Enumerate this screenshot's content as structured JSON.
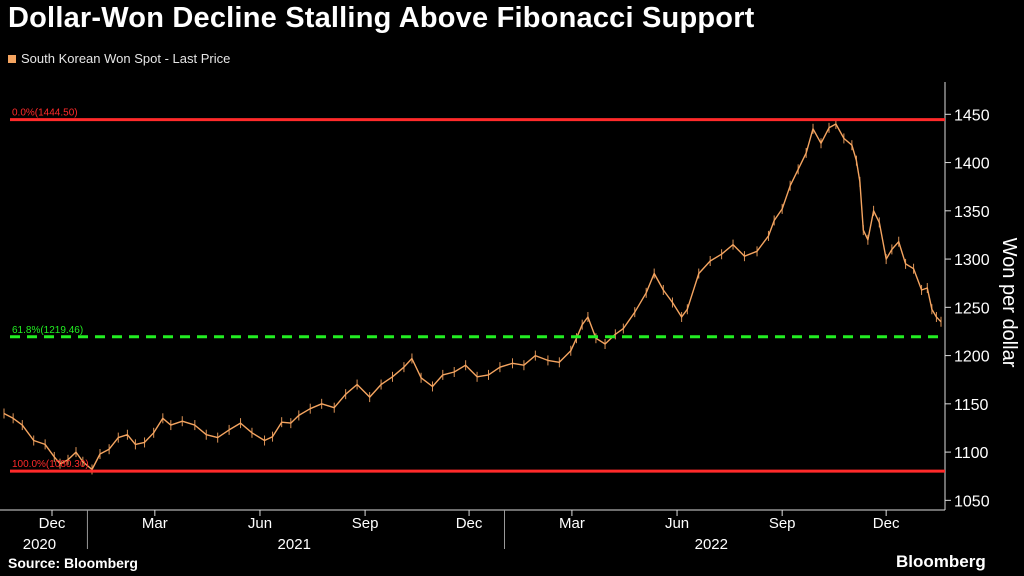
{
  "title": "Dollar-Won Decline Stalling Above Fibonacci Support",
  "legend": {
    "label": "South Korean Won Spot - Last Price",
    "color": "#f4a460"
  },
  "source": "Source: Bloomberg",
  "brand": "Bloomberg",
  "chart_data": {
    "type": "line",
    "ylabel": "Won per dollar",
    "y_axis_side": "right",
    "ylim": [
      1040,
      1470
    ],
    "yticks": [
      1050,
      1100,
      1150,
      1200,
      1250,
      1300,
      1350,
      1400,
      1450
    ],
    "xlim": [
      "2020-10-20",
      "2023-01-18"
    ],
    "month_ticks": [
      {
        "label": "Dec",
        "date": "2020-12-01"
      },
      {
        "label": "Mar",
        "date": "2021-03-01"
      },
      {
        "label": "Jun",
        "date": "2021-06-01"
      },
      {
        "label": "Sep",
        "date": "2021-09-01"
      },
      {
        "label": "Dec",
        "date": "2021-12-01"
      },
      {
        "label": "Mar",
        "date": "2022-03-01"
      },
      {
        "label": "Jun",
        "date": "2022-06-01"
      },
      {
        "label": "Sep",
        "date": "2022-09-01"
      },
      {
        "label": "Dec",
        "date": "2022-12-01"
      }
    ],
    "year_labels": [
      {
        "label": "2020",
        "date": "2020-11-20"
      },
      {
        "label": "2021",
        "date": "2021-07-01"
      },
      {
        "label": "2022",
        "date": "2022-07-01"
      }
    ],
    "year_dividers": [
      "2021-01-01",
      "2022-01-01"
    ],
    "reference_lines": [
      {
        "label": "0.0%(1444.50)",
        "value": 1444.5,
        "color": "#ff2a2a",
        "style": "solid"
      },
      {
        "label": "61.8%(1219.46)",
        "value": 1219.46,
        "color": "#22ee22",
        "style": "dashed"
      },
      {
        "label": "100.0%(1080.30)",
        "value": 1080.3,
        "color": "#ff2a2a",
        "style": "solid"
      }
    ],
    "series": [
      {
        "name": "South Korean Won Spot - Last Price",
        "color": "#f4a460",
        "points": [
          [
            "2020-10-20",
            1140
          ],
          [
            "2020-10-28",
            1135
          ],
          [
            "2020-11-05",
            1128
          ],
          [
            "2020-11-15",
            1112
          ],
          [
            "2020-11-25",
            1108
          ],
          [
            "2020-12-03",
            1095
          ],
          [
            "2020-12-08",
            1088
          ],
          [
            "2020-12-15",
            1092
          ],
          [
            "2020-12-22",
            1100
          ],
          [
            "2020-12-28",
            1090
          ],
          [
            "2021-01-05",
            1082
          ],
          [
            "2021-01-12",
            1098
          ],
          [
            "2021-01-20",
            1103
          ],
          [
            "2021-01-28",
            1115
          ],
          [
            "2021-02-05",
            1118
          ],
          [
            "2021-02-12",
            1108
          ],
          [
            "2021-02-20",
            1110
          ],
          [
            "2021-02-28",
            1120
          ],
          [
            "2021-03-08",
            1135
          ],
          [
            "2021-03-15",
            1128
          ],
          [
            "2021-03-25",
            1132
          ],
          [
            "2021-04-05",
            1128
          ],
          [
            "2021-04-15",
            1118
          ],
          [
            "2021-04-25",
            1115
          ],
          [
            "2021-05-05",
            1123
          ],
          [
            "2021-05-15",
            1130
          ],
          [
            "2021-05-25",
            1120
          ],
          [
            "2021-06-05",
            1112
          ],
          [
            "2021-06-12",
            1116
          ],
          [
            "2021-06-20",
            1131
          ],
          [
            "2021-06-28",
            1130
          ],
          [
            "2021-07-05",
            1138
          ],
          [
            "2021-07-15",
            1145
          ],
          [
            "2021-07-25",
            1150
          ],
          [
            "2021-08-05",
            1146
          ],
          [
            "2021-08-15",
            1160
          ],
          [
            "2021-08-25",
            1170
          ],
          [
            "2021-09-05",
            1157
          ],
          [
            "2021-09-15",
            1170
          ],
          [
            "2021-09-25",
            1178
          ],
          [
            "2021-10-05",
            1188
          ],
          [
            "2021-10-12",
            1197
          ],
          [
            "2021-10-20",
            1177
          ],
          [
            "2021-10-30",
            1168
          ],
          [
            "2021-11-08",
            1180
          ],
          [
            "2021-11-18",
            1183
          ],
          [
            "2021-11-28",
            1190
          ],
          [
            "2021-12-08",
            1178
          ],
          [
            "2021-12-18",
            1180
          ],
          [
            "2021-12-28",
            1188
          ],
          [
            "2022-01-08",
            1192
          ],
          [
            "2022-01-18",
            1190
          ],
          [
            "2022-01-28",
            1200
          ],
          [
            "2022-02-08",
            1195
          ],
          [
            "2022-02-18",
            1193
          ],
          [
            "2022-02-28",
            1205
          ],
          [
            "2022-03-05",
            1218
          ],
          [
            "2022-03-10",
            1232
          ],
          [
            "2022-03-15",
            1240
          ],
          [
            "2022-03-22",
            1218
          ],
          [
            "2022-03-30",
            1212
          ],
          [
            "2022-04-08",
            1222
          ],
          [
            "2022-04-15",
            1228
          ],
          [
            "2022-04-25",
            1245
          ],
          [
            "2022-05-05",
            1265
          ],
          [
            "2022-05-12",
            1285
          ],
          [
            "2022-05-20",
            1268
          ],
          [
            "2022-05-28",
            1255
          ],
          [
            "2022-06-05",
            1240
          ],
          [
            "2022-06-10",
            1248
          ],
          [
            "2022-06-20",
            1285
          ],
          [
            "2022-06-30",
            1298
          ],
          [
            "2022-07-10",
            1305
          ],
          [
            "2022-07-20",
            1315
          ],
          [
            "2022-07-30",
            1303
          ],
          [
            "2022-08-10",
            1308
          ],
          [
            "2022-08-20",
            1324
          ],
          [
            "2022-08-25",
            1340
          ],
          [
            "2022-09-01",
            1352
          ],
          [
            "2022-09-08",
            1376
          ],
          [
            "2022-09-15",
            1393
          ],
          [
            "2022-09-22",
            1410
          ],
          [
            "2022-09-28",
            1435
          ],
          [
            "2022-10-05",
            1420
          ],
          [
            "2022-10-12",
            1436
          ],
          [
            "2022-10-18",
            1440
          ],
          [
            "2022-10-25",
            1425
          ],
          [
            "2022-11-01",
            1418
          ],
          [
            "2022-11-05",
            1402
          ],
          [
            "2022-11-08",
            1380
          ],
          [
            "2022-11-11",
            1330
          ],
          [
            "2022-11-15",
            1320
          ],
          [
            "2022-11-20",
            1350
          ],
          [
            "2022-11-25",
            1338
          ],
          [
            "2022-12-01",
            1300
          ],
          [
            "2022-12-06",
            1310
          ],
          [
            "2022-12-12",
            1318
          ],
          [
            "2022-12-18",
            1295
          ],
          [
            "2022-12-25",
            1290
          ],
          [
            "2023-01-01",
            1268
          ],
          [
            "2023-01-06",
            1270
          ],
          [
            "2023-01-10",
            1248
          ],
          [
            "2023-01-14",
            1240
          ],
          [
            "2023-01-18",
            1235
          ]
        ]
      }
    ]
  }
}
